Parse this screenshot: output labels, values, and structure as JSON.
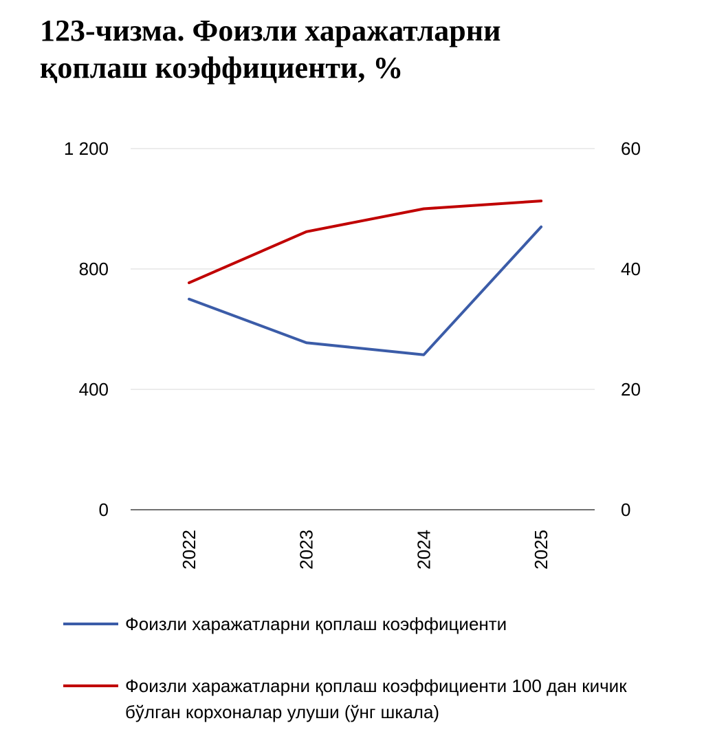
{
  "title_line1": "123-чизма. Фоизли харажатларни",
  "title_line2": "қоплаш коэффициенти, %",
  "chart_data": {
    "type": "line",
    "x": [
      "2022",
      "2023",
      "2024",
      "2025"
    ],
    "series": [
      {
        "name": "Фоизли харажатларни қоплаш коэффициенти",
        "axis": "left",
        "color": "#3B5CA8",
        "values": [
          700,
          555,
          515,
          940
        ]
      },
      {
        "name": "Фоизли харажатларни қоплаш коэффициенти 100 дан кичик бўлган корхоналар улуши (ўнг шкала)",
        "axis": "right",
        "color": "#C00000",
        "values": [
          37.7,
          46.2,
          50.0,
          51.3
        ]
      }
    ],
    "ylim_left": [
      0,
      1200
    ],
    "ylim_right": [
      0,
      60
    ],
    "yticks_left": [
      "0",
      "400",
      "800",
      "1 200"
    ],
    "yticks_right": [
      "0",
      "20",
      "40",
      "60"
    ],
    "grid": true,
    "legend_position": "bottom"
  }
}
